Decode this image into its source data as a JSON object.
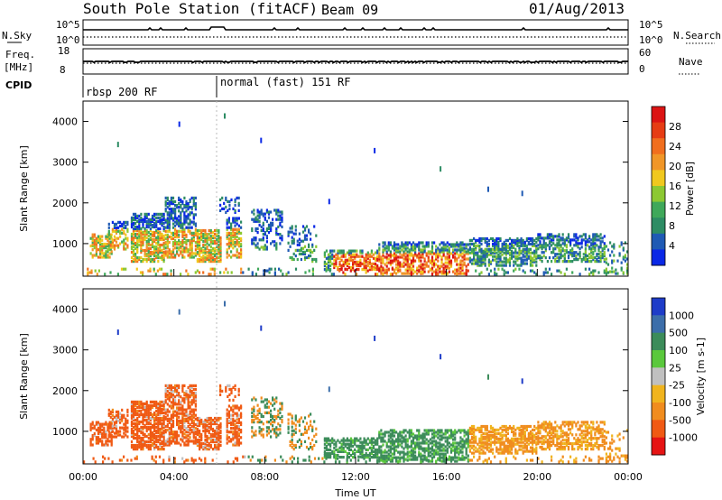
{
  "header": {
    "station": "South Pole Station (fitACF)",
    "beam": "Beam 09",
    "date": "01/Aug/2013"
  },
  "top_panels": {
    "nsky_label": "N.Sky",
    "nsky_ticks": [
      "10^5",
      "10^0"
    ],
    "nsearch_label": "N.Search",
    "freq_label_line1": "Freq.",
    "freq_label_line2": "[MHz]",
    "freq_ticks": [
      "18",
      "8"
    ],
    "nave_label": "Nave",
    "nave_ticks": [
      "60",
      "0"
    ],
    "cpid_label": "CPID",
    "cpid_segments": [
      "rbsp 200 RF",
      "normal (fast) 151 RF"
    ]
  },
  "chart_data": [
    {
      "type": "heatmap",
      "name": "power",
      "ylabel": "Slant Range [km]",
      "xlabel": "",
      "yticks": [
        "1000",
        "2000",
        "3000",
        "4000"
      ],
      "ylim": [
        200,
        4500
      ],
      "xlim": [
        0,
        24
      ],
      "colorbar": {
        "label": "Power [dB]",
        "ticks": [
          "4",
          "8",
          "12",
          "16",
          "20",
          "24",
          "28"
        ],
        "colors": [
          "#0a28e6",
          "#1f5ab4",
          "#2d8c64",
          "#3fa85a",
          "#8cc832",
          "#f0c81e",
          "#f09628",
          "#f06e1e",
          "#e63c14",
          "#dc1414"
        ]
      }
    },
    {
      "type": "heatmap",
      "name": "velocity",
      "ylabel": "Slant Range [km]",
      "xlabel": "Time UT",
      "yticks": [
        "1000",
        "2000",
        "3000",
        "4000"
      ],
      "xticks": [
        "00:00",
        "04:00",
        "08:00",
        "12:00",
        "16:00",
        "20:00",
        "00:00"
      ],
      "ylim": [
        200,
        4500
      ],
      "xlim": [
        0,
        24
      ],
      "colorbar": {
        "label": "Velocity [m s-1]",
        "ticks": [
          "1000",
          "500",
          "100",
          "25",
          "-25",
          "-100",
          "-500",
          "-1000"
        ],
        "colors": [
          "#1e3cc8",
          "#3c6eaa",
          "#3c8c5a",
          "#5ac83c",
          "#c0c0c0",
          "#f0b41e",
          "#f08c1e",
          "#f05a14",
          "#e61414"
        ]
      }
    }
  ]
}
